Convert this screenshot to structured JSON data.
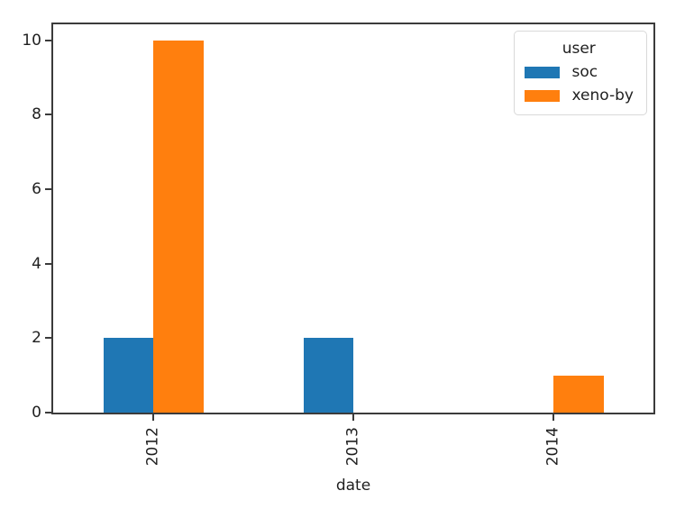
{
  "figure": {
    "background": "#ffffff",
    "spine_color": "#3b3b3b",
    "text_color": "#1f1f1f"
  },
  "chart_data": {
    "type": "bar",
    "title": "",
    "xlabel": "date",
    "ylabel": "",
    "categories": [
      "2012",
      "2013",
      "2014"
    ],
    "series": [
      {
        "name": "soc",
        "color": "#1f77b4",
        "values": [
          2,
          2,
          0
        ]
      },
      {
        "name": "xeno-by",
        "color": "#ff7f0e",
        "values": [
          10,
          0,
          1
        ]
      }
    ],
    "yticks": [
      0,
      2,
      4,
      6,
      8,
      10
    ],
    "ylim": [
      0,
      10.43
    ],
    "grid": false,
    "legend": {
      "title": "user",
      "position": "upper right"
    },
    "x_tick_rotation": 90,
    "group_width_fraction": 0.5
  }
}
